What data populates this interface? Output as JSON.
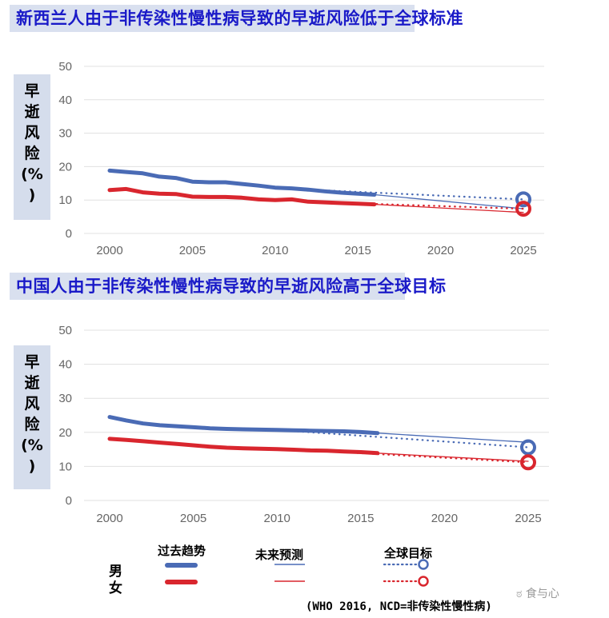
{
  "charts": [
    {
      "title": "新西兰人由于非传染性慢性病导致的早逝风险低于全球标准",
      "ylabel_chars": [
        "早",
        "逝",
        "风",
        "险",
        "(%",
        ")"
      ]
    },
    {
      "title": "中国人由于非传染性慢性病导致的早逝风险高于全球目标",
      "ylabel_chars": [
        "早",
        "逝",
        "风",
        "险",
        "(%",
        ")"
      ]
    }
  ],
  "legend": {
    "past_trend": "过去趋势",
    "future_projection": "未来预测",
    "global_target": "全球目标",
    "male": "男",
    "female": "女"
  },
  "source": "(WHO 2016, NCD=非传染性慢性病)",
  "watermark": "食与心",
  "colors": {
    "male": "#4a6bb5",
    "female": "#d9262e",
    "title_text": "#1a1ac8",
    "title_bg": "#d9e0ef",
    "grid": "#e0e0e0"
  },
  "chart_data": [
    {
      "type": "line",
      "title": "新西兰人由于非传染性慢性病导致的早逝风险低于全球标准",
      "xlabel": "",
      "ylabel": "早逝风险(%)",
      "xlim": [
        2000,
        2025
      ],
      "ylim": [
        0,
        50
      ],
      "x_ticks": [
        2000,
        2005,
        2010,
        2015,
        2020,
        2025
      ],
      "y_ticks": [
        0,
        10,
        20,
        30,
        40,
        50
      ],
      "grid": true,
      "series": [
        {
          "name": "男 过去趋势",
          "style": "thick-solid",
          "color": "#4a6bb5",
          "x": [
            2000,
            2001,
            2002,
            2003,
            2004,
            2005,
            2006,
            2007,
            2008,
            2009,
            2010,
            2011,
            2012,
            2013,
            2014,
            2015,
            2016
          ],
          "y": [
            18.8,
            18.4,
            18.0,
            17.0,
            16.6,
            15.5,
            15.3,
            15.3,
            14.8,
            14.3,
            13.7,
            13.5,
            13.1,
            12.6,
            12.2,
            11.9,
            11.6
          ]
        },
        {
          "name": "女 过去趋势",
          "style": "thick-solid",
          "color": "#d9262e",
          "x": [
            2000,
            2001,
            2002,
            2003,
            2004,
            2005,
            2006,
            2007,
            2008,
            2009,
            2010,
            2011,
            2012,
            2013,
            2014,
            2015,
            2016
          ],
          "y": [
            13.0,
            13.3,
            12.3,
            11.9,
            11.8,
            11.0,
            10.9,
            10.9,
            10.7,
            10.2,
            10.0,
            10.2,
            9.5,
            9.3,
            9.1,
            8.9,
            8.7
          ]
        },
        {
          "name": "男 未来预测",
          "style": "thin-solid",
          "color": "#4a6bb5",
          "x": [
            2016,
            2025
          ],
          "y": [
            11.6,
            7.4
          ]
        },
        {
          "name": "女 未来预测",
          "style": "thin-solid",
          "color": "#d9262e",
          "x": [
            2016,
            2025
          ],
          "y": [
            8.7,
            6.3
          ]
        },
        {
          "name": "男 全球目标",
          "style": "dotted",
          "color": "#4a6bb5",
          "x": [
            2012,
            2025
          ],
          "y": [
            13.1,
            10.2
          ],
          "endpoint_marker": "circle"
        },
        {
          "name": "女 全球目标",
          "style": "dotted",
          "color": "#d9262e",
          "x": [
            2013,
            2025
          ],
          "y": [
            9.3,
            7.4
          ],
          "endpoint_marker": "circle"
        }
      ]
    },
    {
      "type": "line",
      "title": "中国人由于非传染性慢性病导致的早逝风险高于全球目标",
      "xlabel": "",
      "ylabel": "早逝风险(%)",
      "xlim": [
        2000,
        2025
      ],
      "ylim": [
        0,
        50
      ],
      "x_ticks": [
        2000,
        2005,
        2010,
        2015,
        2020,
        2025
      ],
      "y_ticks": [
        0,
        10,
        20,
        30,
        40,
        50
      ],
      "grid": true,
      "series": [
        {
          "name": "男 过去趋势",
          "style": "thick-solid",
          "color": "#4a6bb5",
          "x": [
            2000,
            2001,
            2002,
            2003,
            2004,
            2005,
            2006,
            2007,
            2008,
            2009,
            2010,
            2011,
            2012,
            2013,
            2014,
            2015,
            2016
          ],
          "y": [
            24.5,
            23.5,
            22.6,
            22.1,
            21.8,
            21.5,
            21.2,
            21.0,
            20.9,
            20.8,
            20.7,
            20.6,
            20.5,
            20.4,
            20.3,
            20.1,
            19.8
          ]
        },
        {
          "name": "女 过去趋势",
          "style": "thick-solid",
          "color": "#d9262e",
          "x": [
            2000,
            2001,
            2002,
            2003,
            2004,
            2005,
            2006,
            2007,
            2008,
            2009,
            2010,
            2011,
            2012,
            2013,
            2014,
            2015,
            2016
          ],
          "y": [
            18.1,
            17.8,
            17.4,
            17.0,
            16.6,
            16.2,
            15.8,
            15.5,
            15.3,
            15.2,
            15.1,
            14.9,
            14.7,
            14.6,
            14.4,
            14.2,
            13.9
          ]
        },
        {
          "name": "男 未来预测",
          "style": "thin-solid",
          "color": "#4a6bb5",
          "x": [
            2016,
            2025
          ],
          "y": [
            19.8,
            17.1
          ]
        },
        {
          "name": "女 未来预测",
          "style": "thin-solid",
          "color": "#d9262e",
          "x": [
            2016,
            2025
          ],
          "y": [
            13.9,
            11.5
          ]
        },
        {
          "name": "男 全球目标",
          "style": "dotted",
          "color": "#4a6bb5",
          "x": [
            2010,
            2025
          ],
          "y": [
            20.7,
            15.6
          ],
          "endpoint_marker": "circle"
        },
        {
          "name": "女 全球目标",
          "style": "dotted",
          "color": "#d9262e",
          "x": [
            2012,
            2025
          ],
          "y": [
            14.7,
            11.2
          ],
          "endpoint_marker": "circle"
        }
      ]
    }
  ]
}
